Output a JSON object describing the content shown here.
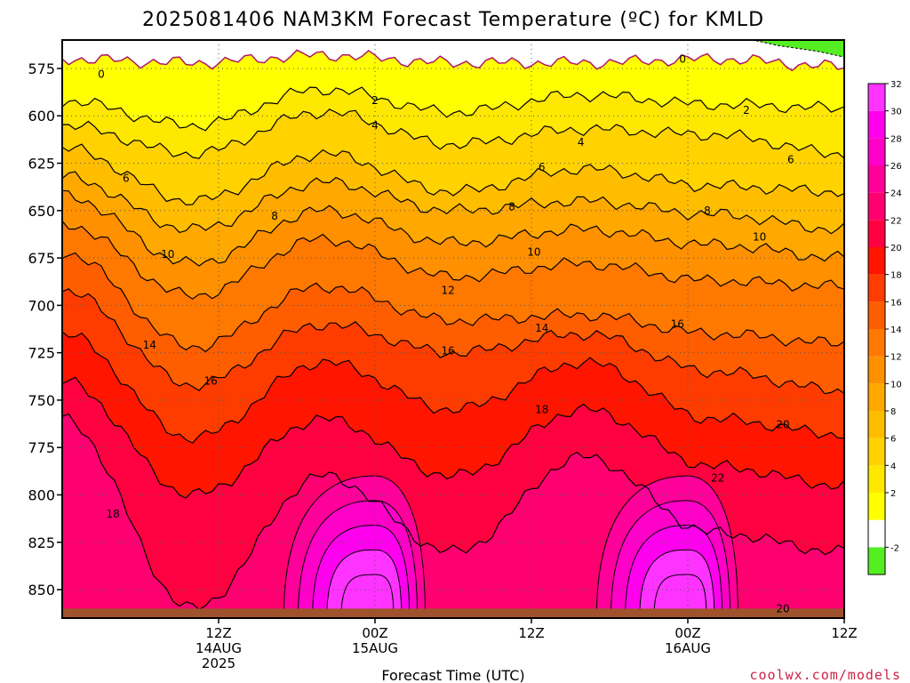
{
  "chart_data": {
    "type": "heatmap",
    "title": "2025081406 NAM3KM Forecast Temperature (ºC) for KMLD",
    "xlabel": "Forecast Time (UTC)",
    "ylabel": "",
    "credit": "coolwx.com/models",
    "y_axis": {
      "reversed": true,
      "ylim": [
        865,
        560
      ],
      "ticks": [
        575,
        600,
        625,
        650,
        675,
        700,
        725,
        750,
        775,
        800,
        825,
        850
      ]
    },
    "x_axis": {
      "xlim_hours": [
        6,
        66
      ],
      "ticks": [
        {
          "hour": 18,
          "line1": "12Z",
          "line2": "14AUG",
          "line3": "2025"
        },
        {
          "hour": 30,
          "line1": "00Z",
          "line2": "15AUG",
          "line3": ""
        },
        {
          "hour": 42,
          "line1": "12Z",
          "line2": "",
          "line3": ""
        },
        {
          "hour": 54,
          "line1": "00Z",
          "line2": "16AUG",
          "line3": ""
        },
        {
          "hour": 66,
          "line1": "12Z",
          "line2": "",
          "line3": ""
        }
      ]
    },
    "grid": "dotted at each x and y tick",
    "colorbar": {
      "position": "right",
      "levels": [
        -4,
        -2,
        0,
        2,
        4,
        6,
        8,
        10,
        12,
        14,
        16,
        18,
        20,
        22,
        24,
        26,
        28,
        30,
        32,
        34
      ],
      "labels": [
        "-2",
        "2",
        "4",
        "6",
        "8",
        "10",
        "12",
        "14",
        "16",
        "18",
        "20",
        "22",
        "24",
        "26",
        "28",
        "30",
        "32"
      ],
      "colors": [
        "#55ee22",
        "#ffffff",
        "#ffff00",
        "#ffe800",
        "#ffd200",
        "#ffbd00",
        "#ffa800",
        "#ff9000",
        "#ff7800",
        "#ff5e00",
        "#ff3c00",
        "#ff1500",
        "#ff0040",
        "#ff0070",
        "#ff009a",
        "#ff00c8",
        "#ff00ee",
        "#ff33ff"
      ]
    },
    "ground_color": "#a0522d",
    "isotherms": [
      {
        "value": 0,
        "pressure": [
          570,
          572,
          568,
          572,
          572,
          570,
          574
        ]
      },
      {
        "value": 2,
        "pressure": [
          592,
          605,
          586,
          598,
          589,
          594,
          596
        ]
      },
      {
        "value": 4,
        "pressure": [
          605,
          620,
          598,
          615,
          607,
          610,
          620
        ]
      },
      {
        "value": 6,
        "pressure": [
          617,
          645,
          620,
          640,
          628,
          637,
          640
        ]
      },
      {
        "value": 8,
        "pressure": [
          632,
          660,
          635,
          650,
          645,
          652,
          660
        ]
      },
      {
        "value": 10,
        "pressure": [
          642,
          678,
          650,
          667,
          660,
          668,
          675
        ]
      },
      {
        "value": 12,
        "pressure": [
          657,
          695,
          665,
          685,
          678,
          687,
          690
        ]
      },
      {
        "value": 14,
        "pressure": [
          672,
          722,
          690,
          708,
          705,
          715,
          720
        ]
      },
      {
        "value": 16,
        "pressure": [
          692,
          742,
          710,
          725,
          715,
          735,
          745
        ]
      },
      {
        "value": 18,
        "pressure": [
          715,
          770,
          730,
          755,
          730,
          760,
          768
        ]
      },
      {
        "value": 20,
        "pressure": [
          740,
          800,
          760,
          790,
          755,
          785,
          795
        ]
      },
      {
        "value": 22,
        "pressure": [
          760,
          860,
          790,
          830,
          780,
          820,
          830
        ]
      }
    ],
    "contour_labels": [
      {
        "value": 0,
        "hour": 9.0,
        "pressure": 578
      },
      {
        "value": 0,
        "hour": 53.6,
        "pressure": 570
      },
      {
        "value": 2,
        "hour": 30.0,
        "pressure": 592
      },
      {
        "value": 2,
        "hour": 58.5,
        "pressure": 597
      },
      {
        "value": 4,
        "hour": 30.0,
        "pressure": 605
      },
      {
        "value": 4,
        "hour": 45.8,
        "pressure": 614
      },
      {
        "value": 6,
        "hour": 10.9,
        "pressure": 633
      },
      {
        "value": 6,
        "hour": 42.8,
        "pressure": 627
      },
      {
        "value": 6,
        "hour": 61.9,
        "pressure": 623
      },
      {
        "value": 8,
        "hour": 22.3,
        "pressure": 653
      },
      {
        "value": 8,
        "hour": 40.5,
        "pressure": 648
      },
      {
        "value": 8,
        "hour": 55.5,
        "pressure": 650
      },
      {
        "value": 10,
        "hour": 14.1,
        "pressure": 673
      },
      {
        "value": 10,
        "hour": 42.2,
        "pressure": 672
      },
      {
        "value": 10,
        "hour": 59.5,
        "pressure": 664
      },
      {
        "value": 12,
        "hour": 35.6,
        "pressure": 692
      },
      {
        "value": 14,
        "hour": 12.7,
        "pressure": 721
      },
      {
        "value": 14,
        "hour": 42.8,
        "pressure": 712
      },
      {
        "value": 16,
        "hour": 17.4,
        "pressure": 740
      },
      {
        "value": 16,
        "hour": 35.6,
        "pressure": 724
      },
      {
        "value": 16,
        "hour": 53.2,
        "pressure": 710
      },
      {
        "value": 18,
        "hour": 9.9,
        "pressure": 810
      },
      {
        "value": 18,
        "hour": 42.8,
        "pressure": 755
      },
      {
        "value": 20,
        "hour": 61.3,
        "pressure": 763
      },
      {
        "value": 20,
        "hour": 61.3,
        "pressure": 860
      },
      {
        "value": 22,
        "hour": 56.3,
        "pressure": 791
      }
    ],
    "warm_cores": [
      {
        "hour": 30,
        "pressure": 860
      },
      {
        "hour": 54,
        "pressure": 860
      }
    ]
  }
}
